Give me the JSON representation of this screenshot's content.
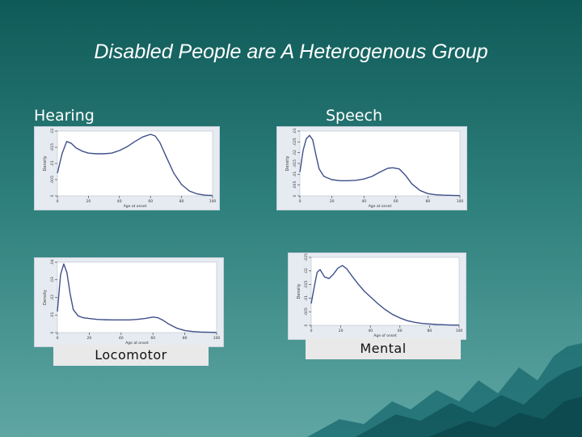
{
  "slide": {
    "title": "Disabled People are A Heterogenous Group"
  },
  "colors": {
    "background_top": "#0f5a58",
    "background_bottom": "#5fa6a3",
    "curve": "#3d4f8a",
    "plot_bg": "#ffffff",
    "panel_bg": "#e6ebf1"
  },
  "chart_data": [
    {
      "type": "line",
      "title": "Hearing",
      "xlabel": "Age at onset",
      "ylabel": "Density",
      "xlim": [
        0,
        100
      ],
      "ylim": [
        0,
        0.02
      ],
      "x_ticks": [
        0,
        20,
        40,
        60,
        80,
        100
      ],
      "y_ticks": [
        "0",
        ".005",
        ".01",
        ".015",
        ".02"
      ],
      "x": [
        0,
        3,
        6,
        9,
        12,
        16,
        20,
        25,
        30,
        35,
        40,
        45,
        50,
        55,
        60,
        63,
        66,
        70,
        75,
        80,
        85,
        90,
        95,
        100
      ],
      "y": [
        0.007,
        0.013,
        0.0168,
        0.0162,
        0.0148,
        0.0138,
        0.0132,
        0.013,
        0.013,
        0.0132,
        0.014,
        0.0152,
        0.0168,
        0.0182,
        0.019,
        0.0185,
        0.0165,
        0.0122,
        0.007,
        0.0035,
        0.0015,
        0.0006,
        0.0002,
        0.0001
      ]
    },
    {
      "type": "line",
      "title": "Speech",
      "xlabel": "Age at onset",
      "ylabel": "Density",
      "xlim": [
        0,
        100
      ],
      "ylim": [
        0,
        0.03
      ],
      "x_ticks": [
        0,
        20,
        40,
        60,
        80,
        100
      ],
      "y_ticks": [
        "0",
        ".005",
        ".01",
        ".015",
        ".02",
        ".025",
        ".03"
      ],
      "x": [
        0,
        2,
        4,
        6,
        8,
        10,
        12,
        15,
        20,
        25,
        30,
        35,
        40,
        45,
        50,
        55,
        58,
        62,
        66,
        70,
        75,
        80,
        85,
        90,
        95,
        100
      ],
      "y": [
        0.011,
        0.021,
        0.0265,
        0.028,
        0.026,
        0.019,
        0.0125,
        0.009,
        0.0075,
        0.007,
        0.007,
        0.0072,
        0.0078,
        0.009,
        0.011,
        0.0128,
        0.013,
        0.0125,
        0.0095,
        0.0055,
        0.0025,
        0.001,
        0.0005,
        0.0003,
        0.0002,
        0.0001
      ]
    },
    {
      "type": "line",
      "title": "Locomotor",
      "xlabel": "Age at onset",
      "ylabel": "Density",
      "xlim": [
        0,
        100
      ],
      "ylim": [
        0,
        0.04
      ],
      "x_ticks": [
        0,
        20,
        40,
        60,
        80,
        100
      ],
      "y_ticks": [
        "0",
        ".01",
        ".02",
        ".03",
        ".04"
      ],
      "x": [
        0,
        2,
        4,
        6,
        8,
        10,
        13,
        16,
        20,
        25,
        30,
        35,
        40,
        45,
        50,
        55,
        60,
        63,
        66,
        70,
        75,
        80,
        85,
        90,
        95,
        100
      ],
      "y": [
        0.012,
        0.033,
        0.039,
        0.034,
        0.022,
        0.013,
        0.0095,
        0.0085,
        0.008,
        0.0075,
        0.0073,
        0.0072,
        0.0072,
        0.0072,
        0.0075,
        0.008,
        0.0088,
        0.0085,
        0.0072,
        0.0048,
        0.0025,
        0.0012,
        0.0006,
        0.0003,
        0.0002,
        0.0001
      ]
    },
    {
      "type": "line",
      "title": "Mental",
      "xlabel": "Age of onset",
      "ylabel": "Density",
      "xlim": [
        0,
        100
      ],
      "ylim": [
        0,
        0.025
      ],
      "x_ticks": [
        0,
        20,
        40,
        60,
        80,
        100
      ],
      "y_ticks": [
        "0",
        ".005",
        ".01",
        ".015",
        ".02",
        ".025"
      ],
      "x": [
        0,
        2,
        4,
        6,
        9,
        12,
        15,
        18,
        21,
        24,
        28,
        32,
        36,
        40,
        45,
        50,
        55,
        60,
        65,
        70,
        75,
        80,
        85,
        90,
        95,
        100
      ],
      "y": [
        0.008,
        0.014,
        0.0195,
        0.0205,
        0.0178,
        0.0172,
        0.0188,
        0.021,
        0.022,
        0.0208,
        0.0178,
        0.015,
        0.0125,
        0.0105,
        0.008,
        0.0058,
        0.004,
        0.0027,
        0.0017,
        0.0011,
        0.0007,
        0.0005,
        0.0003,
        0.0002,
        0.0001,
        0.0001
      ]
    }
  ]
}
